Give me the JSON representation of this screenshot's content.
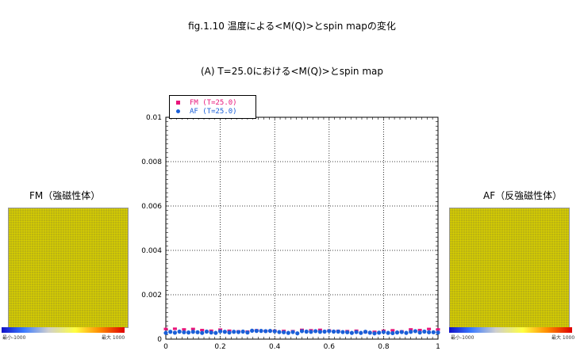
{
  "figure_title": "fig.1.10  温度による<M(Q)>とspin mapの変化",
  "subtitle": "(A)  T=25.0における<M(Q)>とspin map",
  "fm_panel": {
    "label": "FM（強磁性体）",
    "cbar_min": "最小-1000",
    "cbar_max": "最大 1000"
  },
  "af_panel": {
    "label": "AF（反強磁性体）",
    "cbar_min": "最小-1000",
    "cbar_max": "最大 1000"
  },
  "colors": {
    "fm": "#e8157a",
    "af": "#1a5fd8",
    "spin_map": "#d4c81a"
  },
  "chart_data": {
    "type": "scatter",
    "title": "",
    "xlabel": "",
    "ylabel": "",
    "xlim": [
      0,
      1
    ],
    "ylim": [
      0,
      0.01
    ],
    "grid": true,
    "legend_position": "top-left",
    "x_ticks": [
      "0",
      "0.2",
      "0.4",
      "0.6",
      "0.8",
      "1"
    ],
    "y_ticks": [
      "0",
      "0.002",
      "0.004",
      "0.006",
      "0.008",
      "0.01"
    ],
    "series": [
      {
        "name": "FM (T=25.0)",
        "x": [
          0,
          0.0333,
          0.0667,
          0.1,
          0.1333,
          0.1667,
          0.2,
          0.2333,
          0.2667,
          0.3,
          0.3333,
          0.3667,
          0.4,
          0.4333,
          0.4667,
          0.5,
          0.5333,
          0.5667,
          0.6,
          0.6333,
          0.6667,
          0.7,
          0.7333,
          0.7667,
          0.8,
          0.8333,
          0.8667,
          0.9,
          0.9333,
          0.9667,
          1.0
        ],
        "y": [
          0.00046,
          0.00047,
          0.00044,
          0.00046,
          0.00041,
          0.00038,
          0.00043,
          0.00038,
          0.00035,
          0.00034,
          0.0004,
          0.00037,
          0.00038,
          0.00037,
          0.00036,
          0.00042,
          0.0004,
          0.00042,
          0.00039,
          0.00037,
          0.00036,
          0.00038,
          0.00033,
          0.00033,
          0.00038,
          0.0004,
          0.00035,
          0.00044,
          0.00041,
          0.00046,
          0.00044
        ]
      },
      {
        "name": "AF (T=25.0)",
        "x": [
          0,
          0.0167,
          0.0333,
          0.05,
          0.0667,
          0.0833,
          0.1,
          0.1167,
          0.1333,
          0.15,
          0.1667,
          0.1833,
          0.2,
          0.2167,
          0.2333,
          0.25,
          0.2667,
          0.2833,
          0.3,
          0.3167,
          0.3333,
          0.35,
          0.3667,
          0.3833,
          0.4,
          0.4167,
          0.4333,
          0.45,
          0.4667,
          0.4833,
          0.5,
          0.5167,
          0.5333,
          0.55,
          0.5667,
          0.5833,
          0.6,
          0.6167,
          0.6333,
          0.65,
          0.6667,
          0.6833,
          0.7,
          0.7167,
          0.7333,
          0.75,
          0.7667,
          0.7833,
          0.8,
          0.8167,
          0.8333,
          0.85,
          0.8667,
          0.8833,
          0.9,
          0.9167,
          0.9333,
          0.95,
          0.9667,
          0.9833,
          1.0
        ],
        "y": [
          0.00028,
          0.00033,
          0.00029,
          0.00034,
          0.00031,
          0.0003,
          0.00033,
          0.00031,
          0.00028,
          0.00034,
          0.0003,
          0.00028,
          0.00035,
          0.00033,
          0.0003,
          0.00033,
          0.00032,
          0.00034,
          0.0003,
          0.00038,
          0.00037,
          0.00037,
          0.00036,
          0.00037,
          0.00035,
          0.00032,
          0.00031,
          0.00028,
          0.00032,
          0.00026,
          0.00036,
          0.00034,
          0.00033,
          0.00036,
          0.00033,
          0.00034,
          0.00036,
          0.00034,
          0.00034,
          0.00032,
          0.00031,
          0.00028,
          0.00032,
          0.00028,
          0.00033,
          0.00029,
          0.00026,
          0.00029,
          0.00032,
          0.00028,
          0.00027,
          0.0003,
          0.00032,
          0.00028,
          0.00033,
          0.00036,
          0.0003,
          0.00034,
          0.00031,
          0.00031,
          0.0003
        ]
      }
    ]
  }
}
